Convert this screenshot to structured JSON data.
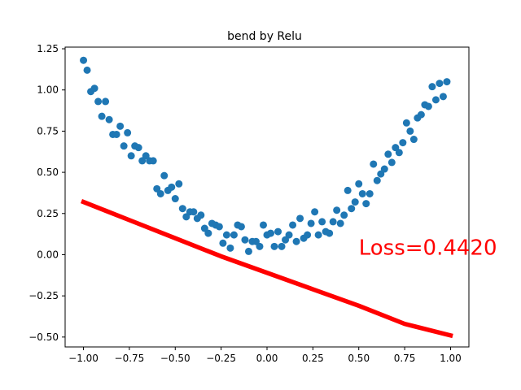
{
  "chart_data": {
    "type": "scatter",
    "title": "bend by Relu",
    "xlabel": "",
    "ylabel": "",
    "xlim": [
      -1.1,
      1.1
    ],
    "ylim": [
      -0.56,
      1.26
    ],
    "grid": false,
    "x_ticks": [
      -1.0,
      -0.75,
      -0.5,
      -0.25,
      0.0,
      0.25,
      0.5,
      0.75,
      1.0
    ],
    "x_tick_labels": [
      "−1.00",
      "−0.75",
      "−0.50",
      "−0.25",
      "0.00",
      "0.25",
      "0.50",
      "0.75",
      "1.00"
    ],
    "y_ticks": [
      -0.5,
      -0.25,
      0.0,
      0.25,
      0.5,
      0.75,
      1.0,
      1.25
    ],
    "y_tick_labels": [
      "−0.50",
      "−0.25",
      "0.00",
      "0.25",
      "0.50",
      "0.75",
      "1.00",
      "1.25"
    ],
    "series": [
      {
        "kind": "scatter",
        "color": "#1f77b4",
        "points": [
          [
            -1.0,
            1.18
          ],
          [
            -0.98,
            1.12
          ],
          [
            -0.96,
            0.99
          ],
          [
            -0.94,
            1.01
          ],
          [
            -0.92,
            0.93
          ],
          [
            -0.9,
            0.84
          ],
          [
            -0.88,
            0.93
          ],
          [
            -0.86,
            0.82
          ],
          [
            -0.84,
            0.73
          ],
          [
            -0.82,
            0.73
          ],
          [
            -0.8,
            0.78
          ],
          [
            -0.78,
            0.66
          ],
          [
            -0.76,
            0.74
          ],
          [
            -0.74,
            0.6
          ],
          [
            -0.72,
            0.66
          ],
          [
            -0.7,
            0.65
          ],
          [
            -0.68,
            0.57
          ],
          [
            -0.66,
            0.6
          ],
          [
            -0.64,
            0.57
          ],
          [
            -0.62,
            0.57
          ],
          [
            -0.6,
            0.4
          ],
          [
            -0.58,
            0.37
          ],
          [
            -0.56,
            0.48
          ],
          [
            -0.54,
            0.39
          ],
          [
            -0.52,
            0.41
          ],
          [
            -0.5,
            0.34
          ],
          [
            -0.48,
            0.43
          ],
          [
            -0.46,
            0.28
          ],
          [
            -0.44,
            0.23
          ],
          [
            -0.42,
            0.26
          ],
          [
            -0.4,
            0.26
          ],
          [
            -0.38,
            0.22
          ],
          [
            -0.36,
            0.24
          ],
          [
            -0.34,
            0.16
          ],
          [
            -0.32,
            0.13
          ],
          [
            -0.3,
            0.19
          ],
          [
            -0.28,
            0.18
          ],
          [
            -0.26,
            0.17
          ],
          [
            -0.24,
            0.07
          ],
          [
            -0.22,
            0.12
          ],
          [
            -0.2,
            0.04
          ],
          [
            -0.18,
            0.12
          ],
          [
            -0.16,
            0.18
          ],
          [
            -0.14,
            0.17
          ],
          [
            -0.12,
            0.09
          ],
          [
            -0.1,
            0.02
          ],
          [
            -0.08,
            0.08
          ],
          [
            -0.06,
            0.08
          ],
          [
            -0.04,
            0.05
          ],
          [
            -0.02,
            0.18
          ],
          [
            0.0,
            0.12
          ],
          [
            0.02,
            0.13
          ],
          [
            0.04,
            0.05
          ],
          [
            0.06,
            0.14
          ],
          [
            0.08,
            0.05
          ],
          [
            0.1,
            0.09
          ],
          [
            0.12,
            0.12
          ],
          [
            0.14,
            0.18
          ],
          [
            0.16,
            0.08
          ],
          [
            0.18,
            0.22
          ],
          [
            0.2,
            0.1
          ],
          [
            0.22,
            0.12
          ],
          [
            0.24,
            0.19
          ],
          [
            0.26,
            0.26
          ],
          [
            0.28,
            0.12
          ],
          [
            0.3,
            0.2
          ],
          [
            0.32,
            0.14
          ],
          [
            0.34,
            0.13
          ],
          [
            0.36,
            0.2
          ],
          [
            0.38,
            0.27
          ],
          [
            0.4,
            0.19
          ],
          [
            0.42,
            0.24
          ],
          [
            0.44,
            0.39
          ],
          [
            0.46,
            0.28
          ],
          [
            0.48,
            0.32
          ],
          [
            0.5,
            0.43
          ],
          [
            0.52,
            0.37
          ],
          [
            0.54,
            0.31
          ],
          [
            0.56,
            0.37
          ],
          [
            0.58,
            0.55
          ],
          [
            0.6,
            0.45
          ],
          [
            0.62,
            0.49
          ],
          [
            0.64,
            0.52
          ],
          [
            0.66,
            0.61
          ],
          [
            0.68,
            0.56
          ],
          [
            0.7,
            0.65
          ],
          [
            0.72,
            0.62
          ],
          [
            0.74,
            0.68
          ],
          [
            0.76,
            0.8
          ],
          [
            0.78,
            0.75
          ],
          [
            0.8,
            0.7
          ],
          [
            0.82,
            0.83
          ],
          [
            0.84,
            0.85
          ],
          [
            0.86,
            0.91
          ],
          [
            0.88,
            0.9
          ],
          [
            0.9,
            1.02
          ],
          [
            0.92,
            0.94
          ],
          [
            0.94,
            1.04
          ],
          [
            0.96,
            0.96
          ],
          [
            0.98,
            1.05
          ]
        ]
      },
      {
        "kind": "line",
        "color": "#ff0000",
        "points": [
          [
            -1.0,
            0.32
          ],
          [
            -0.75,
            0.21
          ],
          [
            -0.5,
            0.1
          ],
          [
            -0.25,
            -0.01
          ],
          [
            0.0,
            -0.11
          ],
          [
            0.25,
            -0.21
          ],
          [
            0.5,
            -0.31
          ],
          [
            0.75,
            -0.42
          ],
          [
            1.0,
            -0.49
          ]
        ]
      }
    ],
    "annotations": [
      {
        "text": "Loss=0.4420",
        "x": 0.5,
        "y": 0.0,
        "color": "#ff0000"
      }
    ]
  }
}
